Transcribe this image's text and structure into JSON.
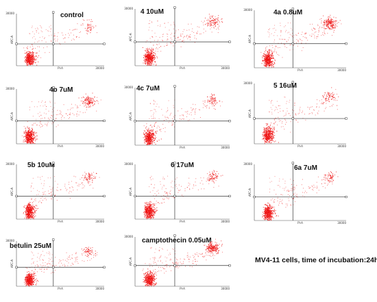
{
  "figure": {
    "footnote": "MV4-11 cells, time of incubation:24h"
  },
  "chart_data": [
    {
      "type": "scatter",
      "title": "control",
      "xlabel": "PI-A",
      "ylabel": "APC-A",
      "y_axis_max": "30000",
      "x_axis_max": "30000",
      "dense_upper_right": 0.2,
      "late_spread": 0.5,
      "gate_x": 0.42,
      "gate_y": 0.42
    },
    {
      "type": "scatter",
      "title": "4  10uM",
      "xlabel": "PI-A",
      "ylabel": "APC-A",
      "y_axis_max": "30000",
      "x_axis_max": "30000",
      "dense_upper_right": 0.45,
      "late_spread": 0.8,
      "gate_x": 0.42,
      "gate_y": 0.42
    },
    {
      "type": "scatter",
      "title": "4a 0.8uM",
      "xlabel": "PI-A",
      "ylabel": "APC-A",
      "y_axis_max": "30000",
      "x_axis_max": "30000",
      "dense_upper_right": 0.9,
      "late_spread": 0.9,
      "gate_x": 0.42,
      "gate_y": 0.42
    },
    {
      "type": "scatter",
      "title": "4b 7uM",
      "xlabel": "PI-A",
      "ylabel": "APC-A",
      "y_axis_max": "30000",
      "x_axis_max": "30000",
      "dense_upper_right": 0.6,
      "late_spread": 0.7,
      "gate_x": 0.42,
      "gate_y": 0.42
    },
    {
      "type": "scatter",
      "title": "4c 7uM",
      "xlabel": "PI-A",
      "ylabel": "APC-A",
      "y_axis_max": "30000",
      "x_axis_max": "30000",
      "dense_upper_right": 0.35,
      "late_spread": 0.6,
      "gate_x": 0.42,
      "gate_y": 0.42
    },
    {
      "type": "scatter",
      "title": "5  16uM",
      "xlabel": "PI-A",
      "ylabel": "APC-A",
      "y_axis_max": "30000",
      "x_axis_max": "30000",
      "dense_upper_right": 0.35,
      "late_spread": 0.6,
      "gate_x": 0.42,
      "gate_y": 0.42
    },
    {
      "type": "scatter",
      "title": "5b 10uM",
      "xlabel": "PI-A",
      "ylabel": "APC-A",
      "y_axis_max": "30000",
      "x_axis_max": "30000",
      "dense_upper_right": 0.3,
      "late_spread": 0.6,
      "gate_x": 0.42,
      "gate_y": 0.42
    },
    {
      "type": "scatter",
      "title": "6  17uM",
      "xlabel": "PI-A",
      "ylabel": "APC-A",
      "y_axis_max": "30000",
      "x_axis_max": "30000",
      "dense_upper_right": 0.35,
      "late_spread": 0.6,
      "gate_x": 0.42,
      "gate_y": 0.42
    },
    {
      "type": "scatter",
      "title": "6a 7uM",
      "xlabel": "PI-A",
      "ylabel": "APC-A",
      "y_axis_max": "30000",
      "x_axis_max": "30000",
      "dense_upper_right": 0.3,
      "late_spread": 0.6,
      "gate_x": 0.42,
      "gate_y": 0.42
    },
    {
      "type": "scatter",
      "title": "betulin 25uM",
      "xlabel": "PI-A",
      "ylabel": "APC-A",
      "y_axis_max": "30000",
      "x_axis_max": "30000",
      "dense_upper_right": 0.3,
      "late_spread": 0.7,
      "gate_x": 0.42,
      "gate_y": 0.42
    },
    {
      "type": "scatter",
      "title": "camptothecin 0.05uM",
      "xlabel": "PI-A",
      "ylabel": "APC-A",
      "y_axis_max": "30000",
      "x_axis_max": "30000",
      "dense_upper_right": 1.0,
      "late_spread": 1.0,
      "gate_x": 0.42,
      "gate_y": 0.42
    }
  ],
  "colors": {
    "dots": "#ee1111",
    "axis": "#555555",
    "gate": "#333333"
  }
}
